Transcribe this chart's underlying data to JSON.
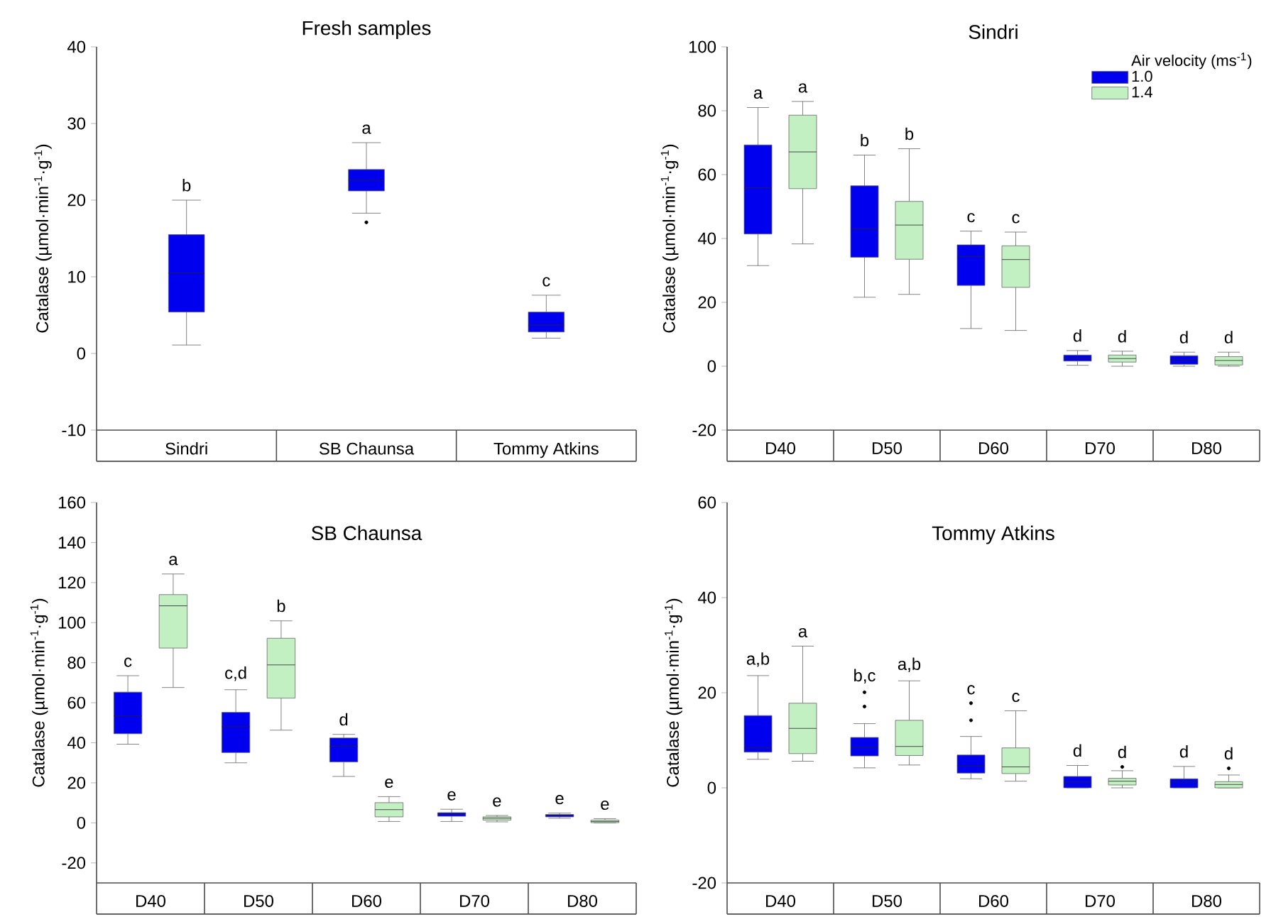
{
  "chart_data": [
    {
      "type": "box",
      "title": "Fresh samples",
      "ylabel": "Catalase (µmol·min$^{-1}$·g$^{-1}$)",
      "categories": [
        "Sindri",
        "SB Chaunsa",
        "Tommy Atkins"
      ],
      "ylim": [
        -10,
        40
      ],
      "yticks": [
        -10,
        0,
        10,
        20,
        30,
        40
      ],
      "color": "#0000ee",
      "boxes": [
        {
          "low": 1.1,
          "q1": 5.4,
          "median": 10.5,
          "q3": 15.5,
          "high": 20
        },
        {
          "low": 18.3,
          "q1": 21.2,
          "median": 22.6,
          "q3": 24,
          "high": 27.5,
          "outliers": [
            17.1
          ]
        },
        {
          "low": 2.0,
          "q1": 2.8,
          "median": 3.7,
          "q3": 5.4,
          "high": 7.6
        }
      ],
      "annotations": [
        "b",
        "a",
        "c"
      ]
    },
    {
      "type": "box",
      "title": "Sindri",
      "ylabel": "Catalase (µmol·min$^{-1}$·g$^{-1}$)",
      "categories": [
        "D40",
        "D50",
        "D60",
        "D70",
        "D80"
      ],
      "ylim": [
        -20,
        100
      ],
      "yticks": [
        -20,
        0,
        20,
        40,
        60,
        80,
        100
      ],
      "legend": "top right",
      "legend_title": "Air velocity (ms$^{-1}$)",
      "series": [
        {
          "name": "1.0",
          "color": "#0000ee",
          "boxes": [
            {
              "low": 31.5,
              "q1": 41.4,
              "median": 55.9,
              "q3": 69.3,
              "high": 81
            },
            {
              "low": 21.6,
              "q1": 34.1,
              "median": 43,
              "q3": 56.5,
              "high": 66.1
            },
            {
              "low": 11.8,
              "q1": 25.3,
              "median": 34.3,
              "q3": 38,
              "high": 42.3
            },
            {
              "low": 0.3,
              "q1": 1.6,
              "median": 2.5,
              "q3": 3.5,
              "high": 4.9
            },
            {
              "low": 0,
              "q1": 0.6,
              "median": 2.1,
              "q3": 3.3,
              "high": 4.4
            }
          ]
        },
        {
          "name": "1.4",
          "color": "#c2f0c2",
          "boxes": [
            {
              "low": 38.3,
              "q1": 55.6,
              "median": 67.1,
              "q3": 78.6,
              "high": 82.9
            },
            {
              "low": 22.5,
              "q1": 33.5,
              "median": 44.2,
              "q3": 51.6,
              "high": 68.1
            },
            {
              "low": 11.2,
              "q1": 24.7,
              "median": 33.4,
              "q3": 37.7,
              "high": 42
            },
            {
              "low": 0,
              "q1": 1.3,
              "median": 2.4,
              "q3": 3.5,
              "high": 4.7
            },
            {
              "low": 0,
              "q1": 0.4,
              "median": 1.8,
              "q3": 3,
              "high": 4.4
            }
          ]
        }
      ],
      "annotations": [
        "a",
        "a",
        "b",
        "b",
        "c",
        "c",
        "d",
        "d",
        "d",
        "d"
      ]
    },
    {
      "type": "box",
      "title": "SB Chaunsa",
      "ylabel": "Catalase (µmol·min$^{-1}$·g$^{-1}$)",
      "categories": [
        "D40",
        "D50",
        "D60",
        "D70",
        "D80"
      ],
      "ylim": [
        -30,
        160
      ],
      "yticks": [
        -20,
        0,
        20,
        40,
        60,
        80,
        100,
        120,
        140,
        160
      ],
      "series": [
        {
          "color": "#0000ee",
          "boxes": [
            {
              "low": 39.3,
              "q1": 44.5,
              "median": 53.4,
              "q3": 65.3,
              "high": 73.5
            },
            {
              "low": 30,
              "q1": 35.1,
              "median": 48,
              "q3": 55.2,
              "high": 66.5
            },
            {
              "low": 23.2,
              "q1": 30.4,
              "median": 38.2,
              "q3": 42.4,
              "high": 44.2
            },
            {
              "low": 0.7,
              "q1": 3.3,
              "median": 4.4,
              "q3": 5.1,
              "high": 6.8
            },
            {
              "low": 2.3,
              "q1": 3,
              "median": 3.7,
              "q3": 4.2,
              "high": 4.9
            }
          ]
        },
        {
          "color": "#c2f0c2",
          "boxes": [
            {
              "low": 67.6,
              "q1": 87.3,
              "median": 108.4,
              "q3": 114,
              "high": 124.3
            },
            {
              "low": 46.3,
              "q1": 62.3,
              "median": 78.9,
              "q3": 92.2,
              "high": 100.9
            },
            {
              "low": 0.7,
              "q1": 3,
              "median": 6.6,
              "q3": 10.1,
              "high": 13.1
            },
            {
              "low": 0.5,
              "q1": 1.4,
              "median": 2.3,
              "q3": 3,
              "high": 3.7
            },
            {
              "low": 0,
              "q1": 0.1,
              "median": 0.7,
              "q3": 1.4,
              "high": 2.1
            }
          ]
        }
      ],
      "annotations": [
        "c",
        "a",
        "c,d",
        "b",
        "d",
        "e",
        "e",
        "e",
        "e",
        "e"
      ]
    },
    {
      "type": "box",
      "title": "Tommy Atkins",
      "ylabel": "Catalase (µmol·min$^{-1}$·g$^{-1}$)",
      "categories": [
        "D40",
        "D50",
        "D60",
        "D70",
        "D80"
      ],
      "ylim": [
        -20,
        60
      ],
      "yticks": [
        -20,
        0,
        20,
        40,
        60
      ],
      "series": [
        {
          "color": "#0000ee",
          "boxes": [
            {
              "low": 6.0,
              "q1": 7.5,
              "median": 8.4,
              "q3": 15.2,
              "high": 23.6
            },
            {
              "low": 4.2,
              "q1": 6.7,
              "median": 8.5,
              "q3": 10.6,
              "high": 13.5,
              "outliers": [
                17.1,
                20.1
              ]
            },
            {
              "low": 1.9,
              "q1": 3.1,
              "median": 4.6,
              "q3": 6.9,
              "high": 10.8,
              "outliers": [
                14.2,
                17.8
              ]
            },
            {
              "low": 0,
              "q1": 0,
              "median": 1.2,
              "q3": 2.4,
              "high": 4.7
            },
            {
              "low": 0,
              "q1": 0,
              "median": 1.2,
              "q3": 1.9,
              "high": 4.5
            }
          ]
        },
        {
          "color": "#c2f0c2",
          "boxes": [
            {
              "low": 5.6,
              "q1": 7.2,
              "median": 12.5,
              "q3": 17.8,
              "high": 29.8
            },
            {
              "low": 4.8,
              "q1": 6.8,
              "median": 8.7,
              "q3": 14.2,
              "high": 22.5
            },
            {
              "low": 1.4,
              "q1": 3.0,
              "median": 4.4,
              "q3": 8.4,
              "high": 16.2
            },
            {
              "low": 0,
              "q1": 0.6,
              "median": 1.4,
              "q3": 2.0,
              "high": 3.6,
              "outliers": [
                4.4
              ]
            },
            {
              "low": 0,
              "q1": 0,
              "median": 0.7,
              "q3": 1.3,
              "high": 2.7,
              "outliers": [
                4.1
              ]
            }
          ]
        }
      ],
      "annotations": [
        "a,b",
        "a",
        "b,c",
        "a,b",
        "c",
        "c",
        "d",
        "d",
        "d",
        "d"
      ]
    }
  ]
}
